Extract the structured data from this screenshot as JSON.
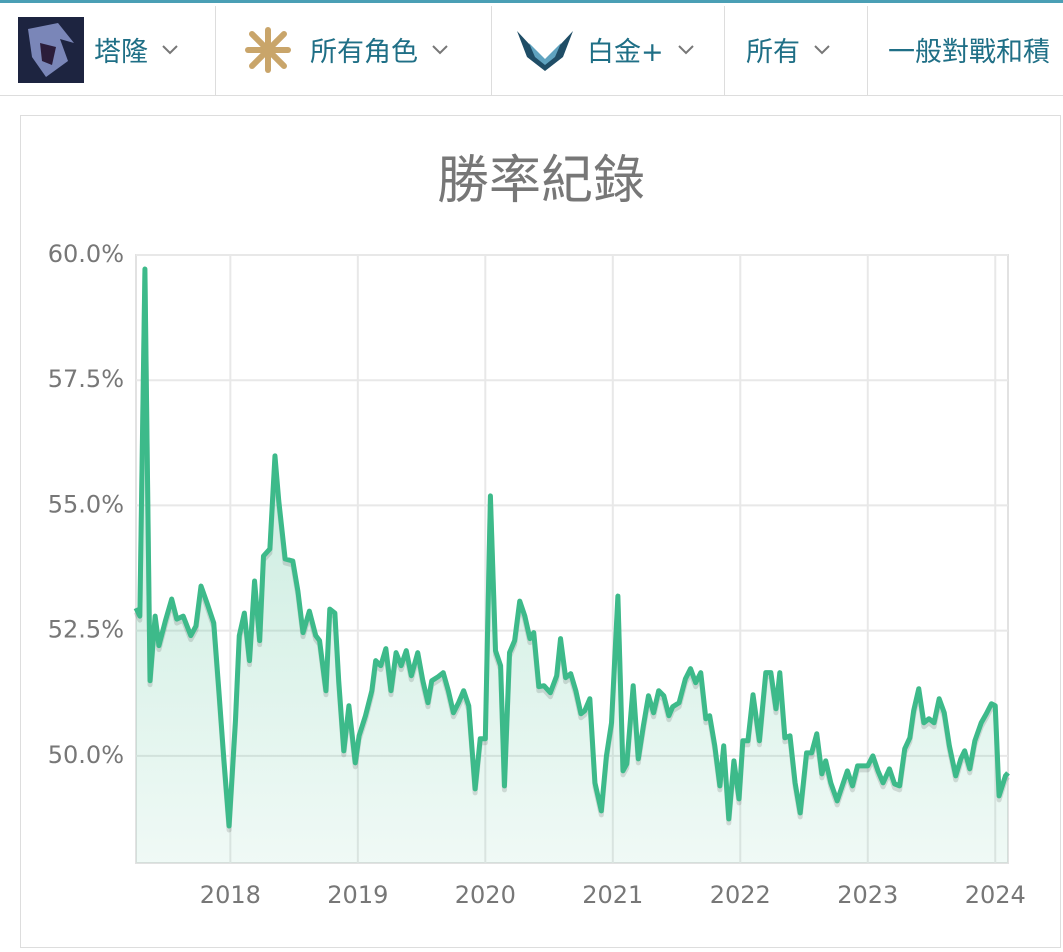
{
  "filters": [
    "塔隆",
    "所有角色",
    "白金+",
    "所有",
    "一般對戰和積"
  ],
  "chart_data": {
    "type": "line",
    "title": "勝率紀錄",
    "color": "#3dba8a",
    "grid": true,
    "xlim": [
      2017.26,
      2024.1
    ],
    "xticks": [
      2018,
      2019,
      2020,
      2021,
      2022,
      2023,
      2024
    ],
    "ylim": [
      47.86,
      60
    ],
    "yticks": [
      {
        "value": 50,
        "label": "50.0%"
      },
      {
        "value": 52.5,
        "label": "52.5%"
      },
      {
        "value": 55,
        "label": "55.0%"
      },
      {
        "value": 57.5,
        "label": "57.5%"
      },
      {
        "value": 60,
        "label": "60.0%"
      }
    ],
    "x": [
      2017.26,
      2017.29,
      2017.33,
      2017.37,
      2017.41,
      2017.44,
      2017.49,
      2017.54,
      2017.58,
      2017.63,
      2017.69,
      2017.73,
      2017.77,
      2017.82,
      2017.87,
      2017.91,
      2017.95,
      2017.99,
      2018.04,
      2018.07,
      2018.11,
      2018.15,
      2018.19,
      2018.23,
      2018.26,
      2018.31,
      2018.35,
      2018.38,
      2018.43,
      2018.49,
      2018.53,
      2018.57,
      2018.62,
      2018.67,
      2018.7,
      2018.75,
      2018.78,
      2018.82,
      2018.85,
      2018.89,
      2018.93,
      2018.98,
      2019.01,
      2019.06,
      2019.11,
      2019.14,
      2019.18,
      2019.22,
      2019.26,
      2019.3,
      2019.34,
      2019.38,
      2019.42,
      2019.47,
      2019.51,
      2019.55,
      2019.58,
      2019.63,
      2019.67,
      2019.71,
      2019.75,
      2019.79,
      2019.83,
      2019.87,
      2019.92,
      2019.96,
      2020.0,
      2020.04,
      2020.08,
      2020.12,
      2020.15,
      2020.19,
      2020.23,
      2020.27,
      2020.31,
      2020.35,
      2020.38,
      2020.42,
      2020.46,
      2020.51,
      2020.56,
      2020.59,
      2020.63,
      2020.67,
      2020.71,
      2020.75,
      2020.78,
      2020.82,
      2020.86,
      2020.91,
      2020.95,
      2020.99,
      2021.04,
      2021.08,
      2021.11,
      2021.16,
      2021.2,
      2021.24,
      2021.28,
      2021.32,
      2021.36,
      2021.4,
      2021.44,
      2021.47,
      2021.52,
      2021.57,
      2021.61,
      2021.65,
      2021.69,
      2021.73,
      2021.76,
      2021.8,
      2021.84,
      2021.87,
      2021.91,
      2021.95,
      2021.99,
      2022.02,
      2022.06,
      2022.1,
      2022.15,
      2022.2,
      2022.24,
      2022.28,
      2022.31,
      2022.35,
      2022.39,
      2022.43,
      2022.47,
      2022.52,
      2022.56,
      2022.6,
      2022.64,
      2022.67,
      2022.71,
      2022.76,
      2022.8,
      2022.84,
      2022.88,
      2022.92,
      2022.96,
      2023.0,
      2023.04,
      2023.08,
      2023.12,
      2023.17,
      2023.21,
      2023.25,
      2023.29,
      2023.33,
      2023.36,
      2023.4,
      2023.44,
      2023.48,
      2023.52,
      2023.56,
      2023.6,
      2023.64,
      2023.69,
      2023.73,
      2023.76,
      2023.8,
      2023.84,
      2023.89,
      2023.93,
      2023.97,
      2024.0,
      2024.03,
      2024.08,
      2024.1
    ],
    "values": [
      52.95,
      52.79,
      59.72,
      51.5,
      52.79,
      52.2,
      52.69,
      53.13,
      52.73,
      52.79,
      52.4,
      52.59,
      53.39,
      53.03,
      52.65,
      51.3,
      49.9,
      48.6,
      50.7,
      52.4,
      52.85,
      51.9,
      53.49,
      52.3,
      53.99,
      54.13,
      55.99,
      55.09,
      53.93,
      53.89,
      53.29,
      52.46,
      52.89,
      52.4,
      52.3,
      51.3,
      52.93,
      52.85,
      51.5,
      50.1,
      51.0,
      49.86,
      50.4,
      50.8,
      51.3,
      51.9,
      51.8,
      52.14,
      51.3,
      52.06,
      51.8,
      52.1,
      51.6,
      52.06,
      51.5,
      51.06,
      51.5,
      51.58,
      51.66,
      51.3,
      50.86,
      51.06,
      51.3,
      51.0,
      49.34,
      50.34,
      50.34,
      55.19,
      52.1,
      51.8,
      49.4,
      52.06,
      52.3,
      53.09,
      52.79,
      52.34,
      52.46,
      51.38,
      51.4,
      51.26,
      51.6,
      52.34,
      51.56,
      51.64,
      51.3,
      50.84,
      50.9,
      51.14,
      49.46,
      48.9,
      50.0,
      50.66,
      53.19,
      49.7,
      49.84,
      51.4,
      49.94,
      50.6,
      51.2,
      50.86,
      51.3,
      51.2,
      50.8,
      50.98,
      51.06,
      51.54,
      51.74,
      51.46,
      51.66,
      50.74,
      50.8,
      50.2,
      49.4,
      50.2,
      48.74,
      49.9,
      49.14,
      50.3,
      50.3,
      51.22,
      50.3,
      51.66,
      51.66,
      50.94,
      51.66,
      50.36,
      50.4,
      49.46,
      48.86,
      50.06,
      50.06,
      50.44,
      49.64,
      49.9,
      49.46,
      49.1,
      49.4,
      49.7,
      49.4,
      49.8,
      49.8,
      49.8,
      50.0,
      49.7,
      49.46,
      49.74,
      49.44,
      49.4,
      50.14,
      50.36,
      50.9,
      51.34,
      50.66,
      50.74,
      50.66,
      51.14,
      50.86,
      50.2,
      49.6,
      49.94,
      50.1,
      49.74,
      50.3,
      50.66,
      50.84,
      51.04,
      51.0,
      49.2,
      49.6,
      49.66
    ]
  }
}
